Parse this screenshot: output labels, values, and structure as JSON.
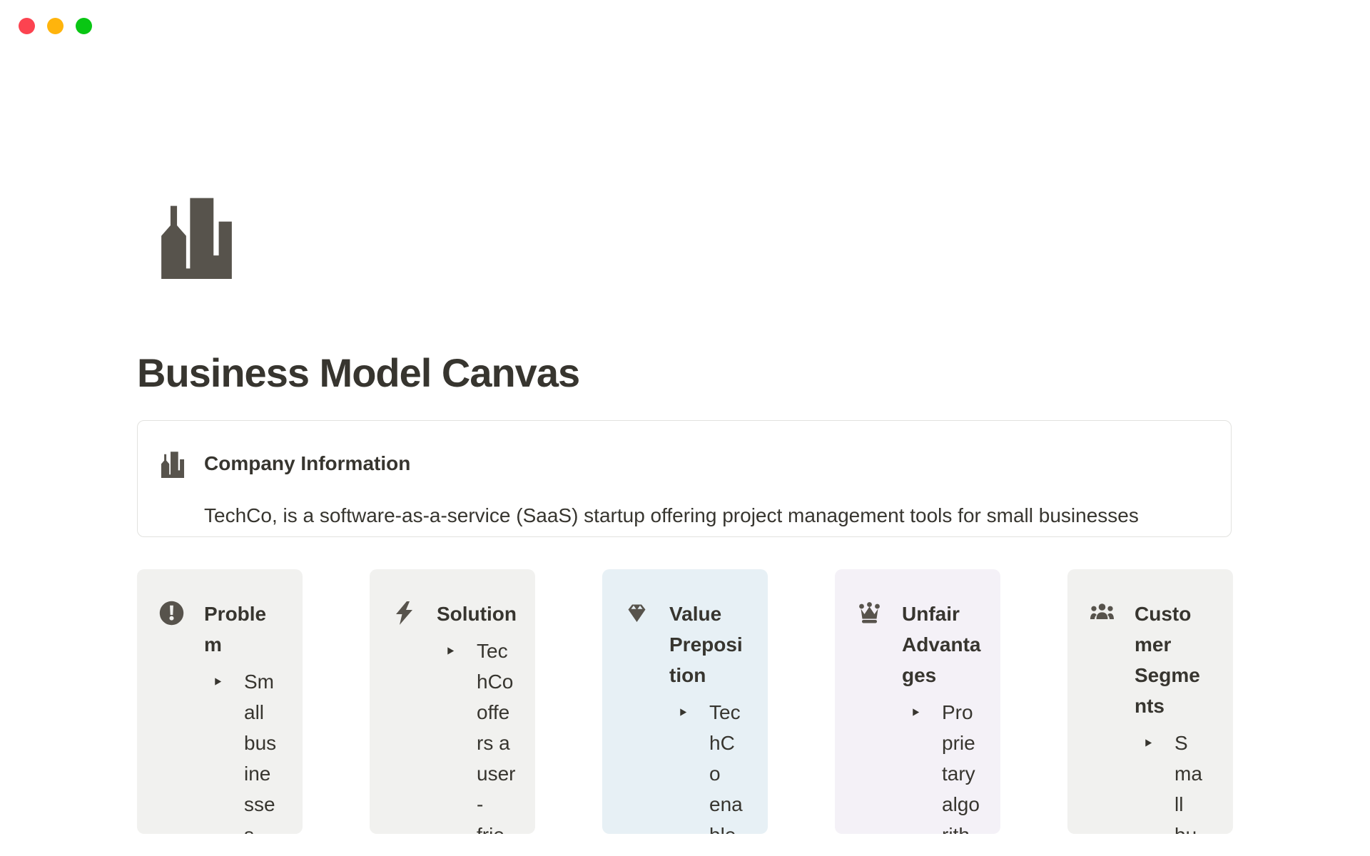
{
  "window": {
    "traffic_lights": [
      {
        "name": "close-button",
        "color": "#FC4350"
      },
      {
        "name": "minimize-button",
        "color": "#FFB40C"
      },
      {
        "name": "zoom-button",
        "color": "#09C613"
      }
    ]
  },
  "page": {
    "icon": "city-buildings-icon",
    "title": "Business Model Canvas"
  },
  "callout": {
    "icon": "city-buildings-icon",
    "title": "Company Information",
    "body": "TechCo, is a software-as-a-service (SaaS) startup offering project management tools for small businesses"
  },
  "cards": [
    {
      "id": "problem",
      "icon": "exclamation-circle-icon",
      "bg": "#F1F1EF",
      "title": "Problem",
      "title_lines": [
        "Proble",
        "m"
      ],
      "item_text": "Small businesses",
      "item_lines": [
        "Sm",
        "all",
        "bus",
        "ine",
        "sse",
        "s"
      ]
    },
    {
      "id": "solution",
      "icon": "lightning-bolt-icon",
      "bg": "#F1F1EF",
      "title": "Solution",
      "title_lines": [
        "Solution"
      ],
      "item_text": "TechCo offers a user-frie",
      "item_lines": [
        "Tec",
        "hCo",
        "offe",
        "rs a",
        "user",
        "-",
        "frie"
      ]
    },
    {
      "id": "value-preposition",
      "icon": "gem-icon",
      "bg": "#E7F0F5",
      "title": "Value Preposition",
      "title_lines": [
        "Value",
        "Preposi",
        "tion"
      ],
      "item_text": "TechCo enable",
      "item_lines": [
        "Tec",
        "hC",
        "o",
        "ena",
        "ble"
      ]
    },
    {
      "id": "unfair-advantages",
      "icon": "crown-icon",
      "bg": "#F4F1F7",
      "title": "Unfair Advantages",
      "title_lines": [
        "Unfair",
        "Advanta",
        "ges"
      ],
      "item_text": "Proprietary algorith",
      "item_lines": [
        "Pro",
        "prie",
        "tary",
        "algo",
        "rith"
      ]
    },
    {
      "id": "customer-segments",
      "icon": "people-group-icon",
      "bg": "#F1F1EF",
      "title": "Customer Segments",
      "title_lines": [
        "Custo",
        "mer",
        "Segme",
        "nts"
      ],
      "item_text": "Small bu",
      "item_lines": [
        "S",
        "ma",
        "ll",
        "bu"
      ]
    }
  ]
}
